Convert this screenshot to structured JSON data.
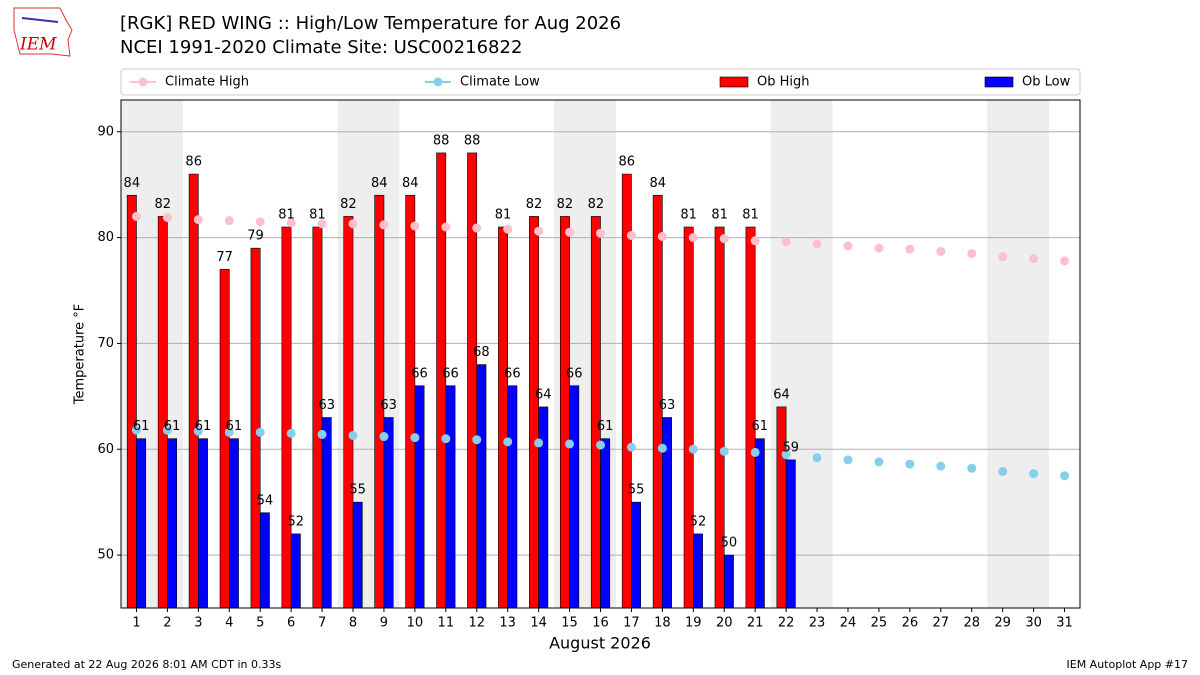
{
  "chart_data": {
    "type": "bar",
    "title": "[RGK] RED WING :: High/Low Temperature for Aug 2026",
    "subtitle": "NCEI 1991-2020 Climate Site: USC00216822",
    "logo_text": "IEM",
    "x_label": "August 2026",
    "y_label": "Temperature °F",
    "footer_left": "Generated at 22 Aug 2026 8:01 AM CDT in 0.33s",
    "footer_right": "IEM Autoplot App #17",
    "x": [
      1,
      2,
      3,
      4,
      5,
      6,
      7,
      8,
      9,
      10,
      11,
      12,
      13,
      14,
      15,
      16,
      17,
      18,
      19,
      20,
      21,
      22,
      23,
      24,
      25,
      26,
      27,
      28,
      29,
      30,
      31
    ],
    "xlim": [
      0.5,
      31.5
    ],
    "xticks": [
      1,
      2,
      3,
      4,
      5,
      6,
      7,
      8,
      9,
      10,
      11,
      12,
      13,
      14,
      15,
      16,
      17,
      18,
      19,
      20,
      21,
      22,
      23,
      24,
      25,
      26,
      27,
      28,
      29,
      30,
      31
    ],
    "ylim": [
      45,
      93
    ],
    "yticks": [
      50,
      60,
      70,
      80,
      90
    ],
    "grid": true,
    "shaded": [
      [
        0.5,
        2.5
      ],
      [
        7.5,
        9.5
      ],
      [
        14.5,
        16.5
      ],
      [
        21.5,
        23.5
      ],
      [
        28.5,
        30.5
      ]
    ],
    "shade_color": "#eeeeee",
    "series": [
      {
        "name": "Climate High",
        "color": "#ffc0cb",
        "style": "line",
        "values": [
          82.0,
          81.9,
          81.7,
          81.6,
          81.5,
          81.4,
          81.3,
          81.3,
          81.2,
          81.1,
          81.0,
          80.9,
          80.8,
          80.6,
          80.5,
          80.4,
          80.2,
          80.1,
          80.0,
          79.9,
          79.7,
          79.6,
          79.4,
          79.2,
          79.0,
          78.9,
          78.7,
          78.5,
          78.2,
          78.0,
          77.8
        ]
      },
      {
        "name": "Climate Low",
        "color": "#87ceeb",
        "style": "line",
        "values": [
          61.8,
          61.8,
          61.7,
          61.6,
          61.6,
          61.5,
          61.4,
          61.3,
          61.2,
          61.1,
          61.0,
          60.9,
          60.7,
          60.6,
          60.5,
          60.4,
          60.2,
          60.1,
          60.0,
          59.8,
          59.7,
          59.5,
          59.2,
          59.0,
          58.8,
          58.6,
          58.4,
          58.2,
          57.9,
          57.7,
          57.5
        ]
      },
      {
        "name": "Ob High",
        "color": "#ff0000",
        "style": "bar",
        "side": -1,
        "values": [
          84,
          82,
          86,
          77,
          79,
          81,
          81,
          82,
          84,
          84,
          88,
          88,
          81,
          82,
          82,
          82,
          86,
          84,
          81,
          81,
          81,
          64,
          null,
          null,
          null,
          null,
          null,
          null,
          null,
          null,
          null
        ]
      },
      {
        "name": "Ob Low",
        "color": "#0000ff",
        "style": "bar",
        "side": 1,
        "values": [
          61,
          61,
          61,
          61,
          54,
          52,
          63,
          55,
          63,
          66,
          66,
          68,
          66,
          64,
          66,
          61,
          55,
          63,
          52,
          50,
          61,
          59,
          null,
          null,
          null,
          null,
          null,
          null,
          null,
          null,
          null
        ]
      }
    ]
  }
}
